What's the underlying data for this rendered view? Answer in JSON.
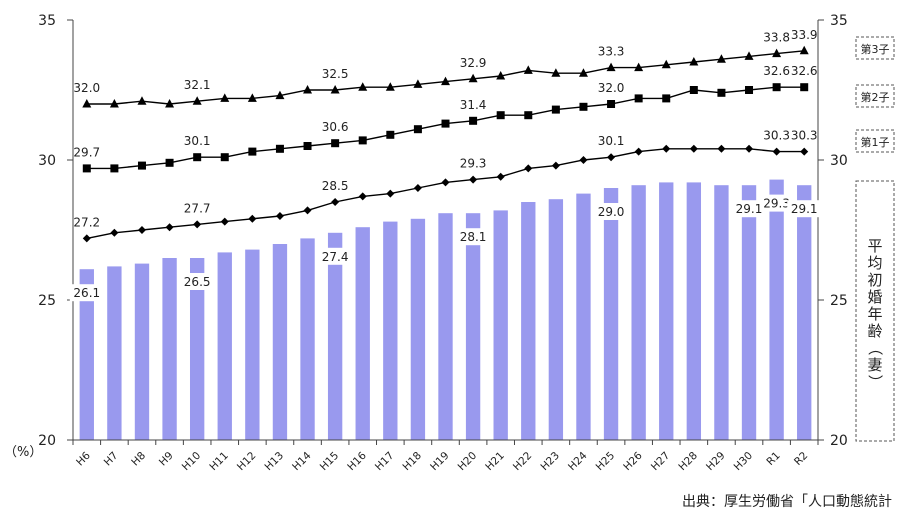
{
  "chart_data": {
    "type": "bar",
    "categories": [
      "H6",
      "H7",
      "H8",
      "H9",
      "H10",
      "H11",
      "H12",
      "H13",
      "H14",
      "H15",
      "H16",
      "H17",
      "H18",
      "H19",
      "H20",
      "H21",
      "H22",
      "H23",
      "H24",
      "H25",
      "H26",
      "H27",
      "H28",
      "H29",
      "H30",
      "R1",
      "R2"
    ],
    "bar_values": [
      26.1,
      26.2,
      26.3,
      26.5,
      26.5,
      26.7,
      26.8,
      27.0,
      27.2,
      27.4,
      27.6,
      27.8,
      27.9,
      28.1,
      28.1,
      28.2,
      28.5,
      28.6,
      28.8,
      29.0,
      29.1,
      29.2,
      29.2,
      29.1,
      29.1,
      29.3,
      29.1
    ],
    "bar_labels": [
      {
        "i": 0,
        "text": "26.1"
      },
      {
        "i": 4,
        "text": "26.5"
      },
      {
        "i": 9,
        "text": "27.4"
      },
      {
        "i": 14,
        "text": "28.1"
      },
      {
        "i": 19,
        "text": "29.0"
      },
      {
        "i": 24,
        "text": "29.1"
      },
      {
        "i": 25,
        "text": "29.3"
      },
      {
        "i": 26,
        "text": "29.1"
      }
    ],
    "bar_color": "#9999ee",
    "series": [
      {
        "name": "第1子",
        "marker": "diamond",
        "values": [
          27.2,
          27.4,
          27.5,
          27.6,
          27.7,
          27.8,
          27.9,
          28.0,
          28.2,
          28.5,
          28.7,
          28.8,
          29.0,
          29.2,
          29.3,
          29.4,
          29.7,
          29.8,
          30.0,
          30.1,
          30.3,
          30.4,
          30.4,
          30.4,
          30.4,
          30.3,
          30.3
        ],
        "labels": [
          {
            "i": 0,
            "text": "27.2"
          },
          {
            "i": 4,
            "text": "27.7"
          },
          {
            "i": 9,
            "text": "28.5"
          },
          {
            "i": 14,
            "text": "29.3"
          },
          {
            "i": 19,
            "text": "30.1"
          },
          {
            "i": 25,
            "text": "30.3"
          },
          {
            "i": 26,
            "text": "30.3"
          }
        ]
      },
      {
        "name": "第2子",
        "marker": "square",
        "values": [
          29.7,
          29.7,
          29.8,
          29.9,
          30.1,
          30.1,
          30.3,
          30.4,
          30.5,
          30.6,
          30.7,
          30.9,
          31.1,
          31.3,
          31.4,
          31.6,
          31.6,
          31.8,
          31.9,
          32.0,
          32.2,
          32.2,
          32.5,
          32.4,
          32.5,
          32.6,
          32.6
        ],
        "labels": [
          {
            "i": 0,
            "text": "29.7"
          },
          {
            "i": 4,
            "text": "30.1"
          },
          {
            "i": 9,
            "text": "30.6"
          },
          {
            "i": 14,
            "text": "31.4"
          },
          {
            "i": 19,
            "text": "32.0"
          },
          {
            "i": 25,
            "text": "32.6"
          },
          {
            "i": 26,
            "text": "32.6"
          }
        ]
      },
      {
        "name": "第3子",
        "marker": "triangle",
        "values": [
          32.0,
          32.0,
          32.1,
          32.0,
          32.1,
          32.2,
          32.2,
          32.3,
          32.5,
          32.5,
          32.6,
          32.6,
          32.7,
          32.8,
          32.9,
          33.0,
          33.2,
          33.1,
          33.1,
          33.3,
          33.3,
          33.4,
          33.5,
          33.6,
          33.7,
          33.8,
          33.9
        ],
        "labels": [
          {
            "i": 0,
            "text": "32.0"
          },
          {
            "i": 4,
            "text": "32.1"
          },
          {
            "i": 9,
            "text": "32.5"
          },
          {
            "i": 14,
            "text": "32.9"
          },
          {
            "i": 19,
            "text": "33.3"
          },
          {
            "i": 25,
            "text": "33.8"
          },
          {
            "i": 26,
            "text": "33.9"
          }
        ]
      }
    ],
    "ylim": [
      20,
      35
    ],
    "y_ticks": [
      "20",
      "25",
      "30",
      "35"
    ],
    "y_ticks_right": [
      "20",
      "25",
      "30",
      "35"
    ],
    "y_unit": "（%）",
    "right_title": "平均初婚年齢（妻）",
    "legend_placement": "right",
    "grid": false
  },
  "source": "出典：厚生労働省「人口動態統計"
}
